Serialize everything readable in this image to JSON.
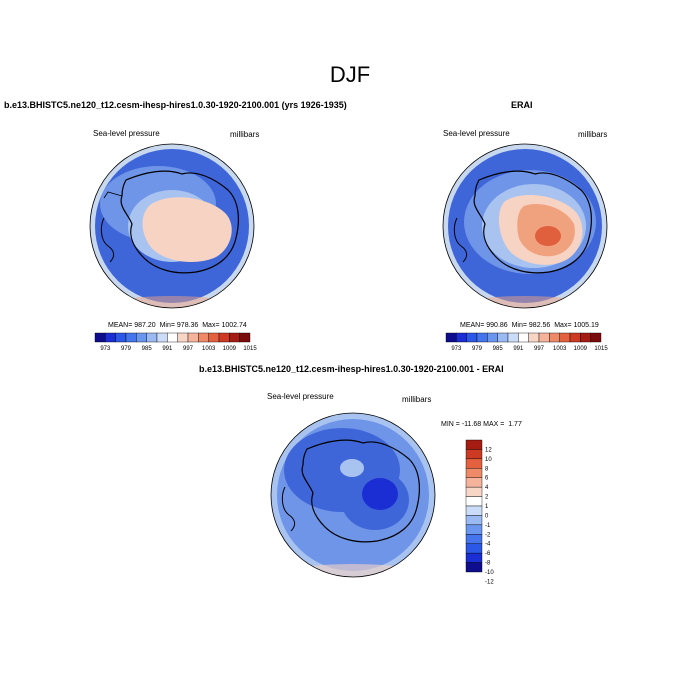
{
  "figure": {
    "title": "DJF"
  },
  "colors": {
    "ring": "#c8d8ee",
    "deep_blue": "#3f66d8",
    "mid_blue": "#6f95e8",
    "light_blue": "#a9c3f0",
    "peach": "#f6d3c3",
    "salmon": "#f0a27f",
    "red": "#e0603e",
    "coast": "#000000",
    "bar_border": "#000000"
  },
  "colorbar_scale": {
    "abs_colors": [
      "#0d0d8e",
      "#1a2ed4",
      "#2b58e6",
      "#4475ec",
      "#6b96ef",
      "#9bbaf3",
      "#cadcf7",
      "#ffffff",
      "#f7d6c6",
      "#f4b39a",
      "#ef8a68",
      "#e4613f",
      "#cc3a24",
      "#a51c13",
      "#7a0b0b"
    ],
    "diff_colors": [
      "#0d0d8e",
      "#1a2ed4",
      "#2b58e6",
      "#4475ec",
      "#6b96ef",
      "#9bbaf3",
      "#cadcf7",
      "#ffffff",
      "#f7d6c6",
      "#f4b39a",
      "#ef8a68",
      "#e4613f",
      "#cc3a24",
      "#a51c13"
    ]
  },
  "chart_data": [
    {
      "type": "heatmap",
      "projection": "south-polar-stereographic",
      "title": "b.e13.BHISTC5.ne120_t12.cesm-ihesp-hires1.0.30-1920-2100.001 (yrs 1926-1935)",
      "variable": "Sea-level pressure",
      "units": "millibars",
      "stats": {
        "mean_label": "MEAN=",
        "mean": "987.20",
        "min_label": "Min=",
        "min": "978.36",
        "max_label": "Max=",
        "max": "1002.74"
      },
      "colorbar": {
        "orientation": "horizontal",
        "tick_labels": [
          "973",
          "979",
          "985",
          "991",
          "997",
          "1003",
          "1009",
          "1015"
        ],
        "levels": [
          973,
          976,
          979,
          982,
          985,
          988,
          991,
          994,
          997,
          1000,
          1003,
          1006,
          1009,
          1012,
          1015
        ]
      }
    },
    {
      "type": "heatmap",
      "projection": "south-polar-stereographic",
      "title": "ERAI",
      "variable": "Sea-level pressure",
      "units": "millibars",
      "stats": {
        "mean_label": "MEAN=",
        "mean": "990.86",
        "min_label": "Min=",
        "min": "982.56",
        "max_label": "Max=",
        "max": "1005.19"
      },
      "colorbar": {
        "orientation": "horizontal",
        "tick_labels": [
          "973",
          "979",
          "985",
          "991",
          "997",
          "1003",
          "1009",
          "1015"
        ],
        "levels": [
          973,
          976,
          979,
          982,
          985,
          988,
          991,
          994,
          997,
          1000,
          1003,
          1006,
          1009,
          1012,
          1015
        ]
      }
    },
    {
      "type": "heatmap",
      "projection": "south-polar-stereographic",
      "title": "b.e13.BHISTC5.ne120_t12.cesm-ihesp-hires1.0.30-1920-2100.001 - ERAI",
      "variable": "Sea-level pressure",
      "units": "millibars",
      "stats": {
        "min_label": "MIN =",
        "min": "-11.68",
        "max_label": "MAX =",
        "max": "1.77"
      },
      "colorbar": {
        "orientation": "vertical",
        "tick_labels": [
          "12",
          "10",
          "8",
          "6",
          "4",
          "2",
          "1",
          "0",
          "-1",
          "-2",
          "-4",
          "-6",
          "-8",
          "-10",
          "-12"
        ],
        "levels": [
          12,
          10,
          8,
          6,
          4,
          2,
          1,
          0,
          -1,
          -2,
          -4,
          -6,
          -8,
          -10,
          -12
        ]
      }
    }
  ]
}
